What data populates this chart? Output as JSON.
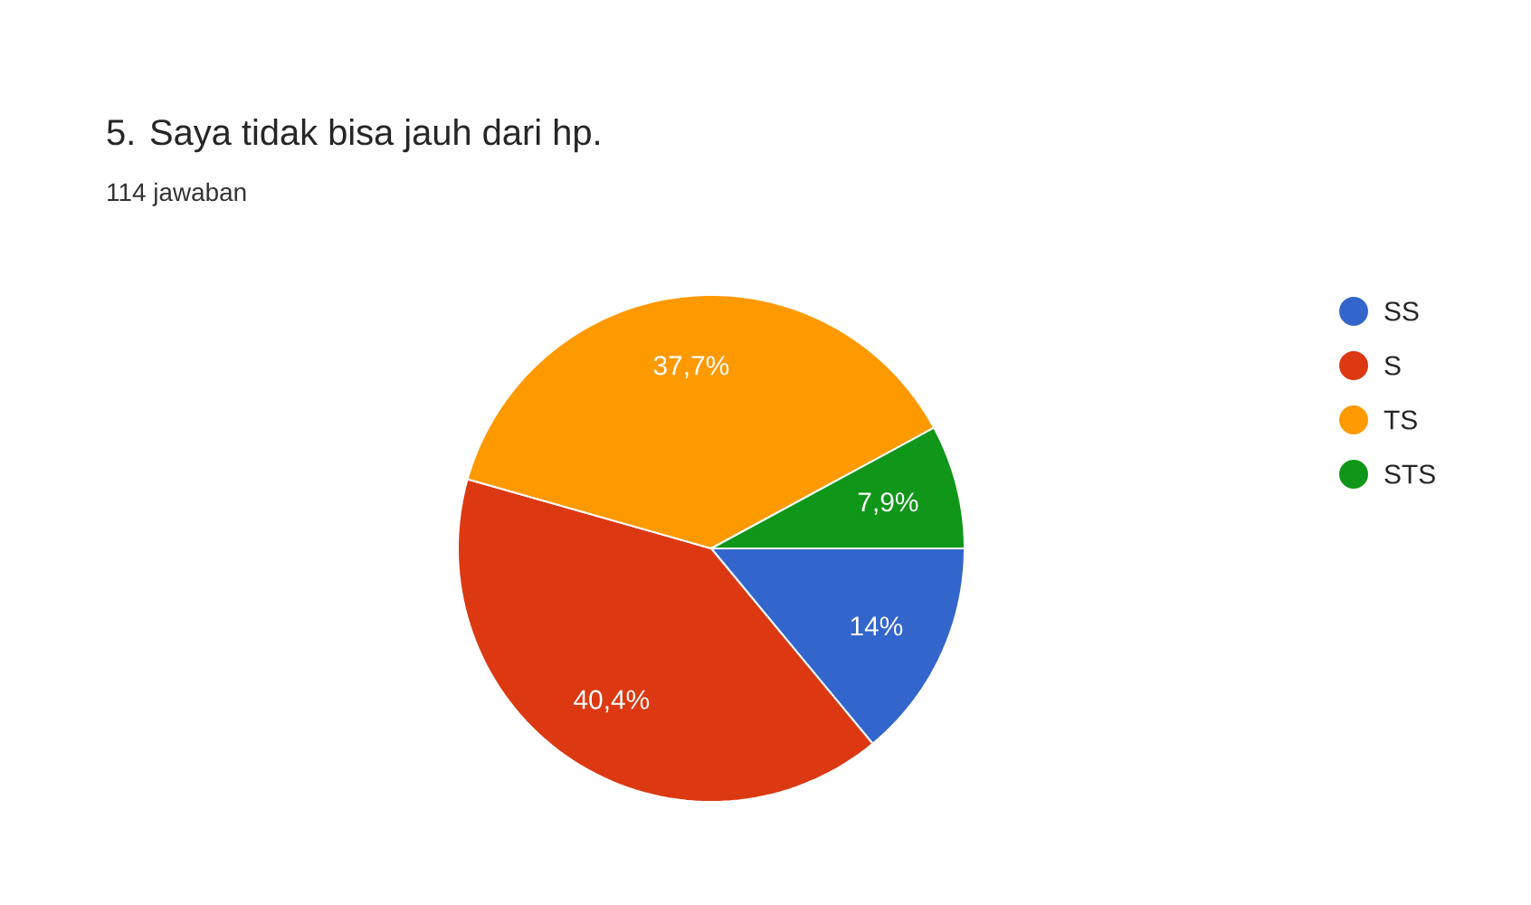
{
  "chart_data": {
    "type": "pie",
    "title": "5.  Saya tidak bisa jauh dari hp.",
    "subtitle": "114 jawaban",
    "categories": [
      "SS",
      "S",
      "TS",
      "STS"
    ],
    "values": [
      14,
      40.4,
      37.7,
      7.9
    ],
    "value_labels": [
      "14%",
      "40,4%",
      "37,7%",
      "7,9%"
    ],
    "colors": [
      "#3366cc",
      "#dc3912",
      "#ff9900",
      "#109618"
    ],
    "legend": "right"
  }
}
